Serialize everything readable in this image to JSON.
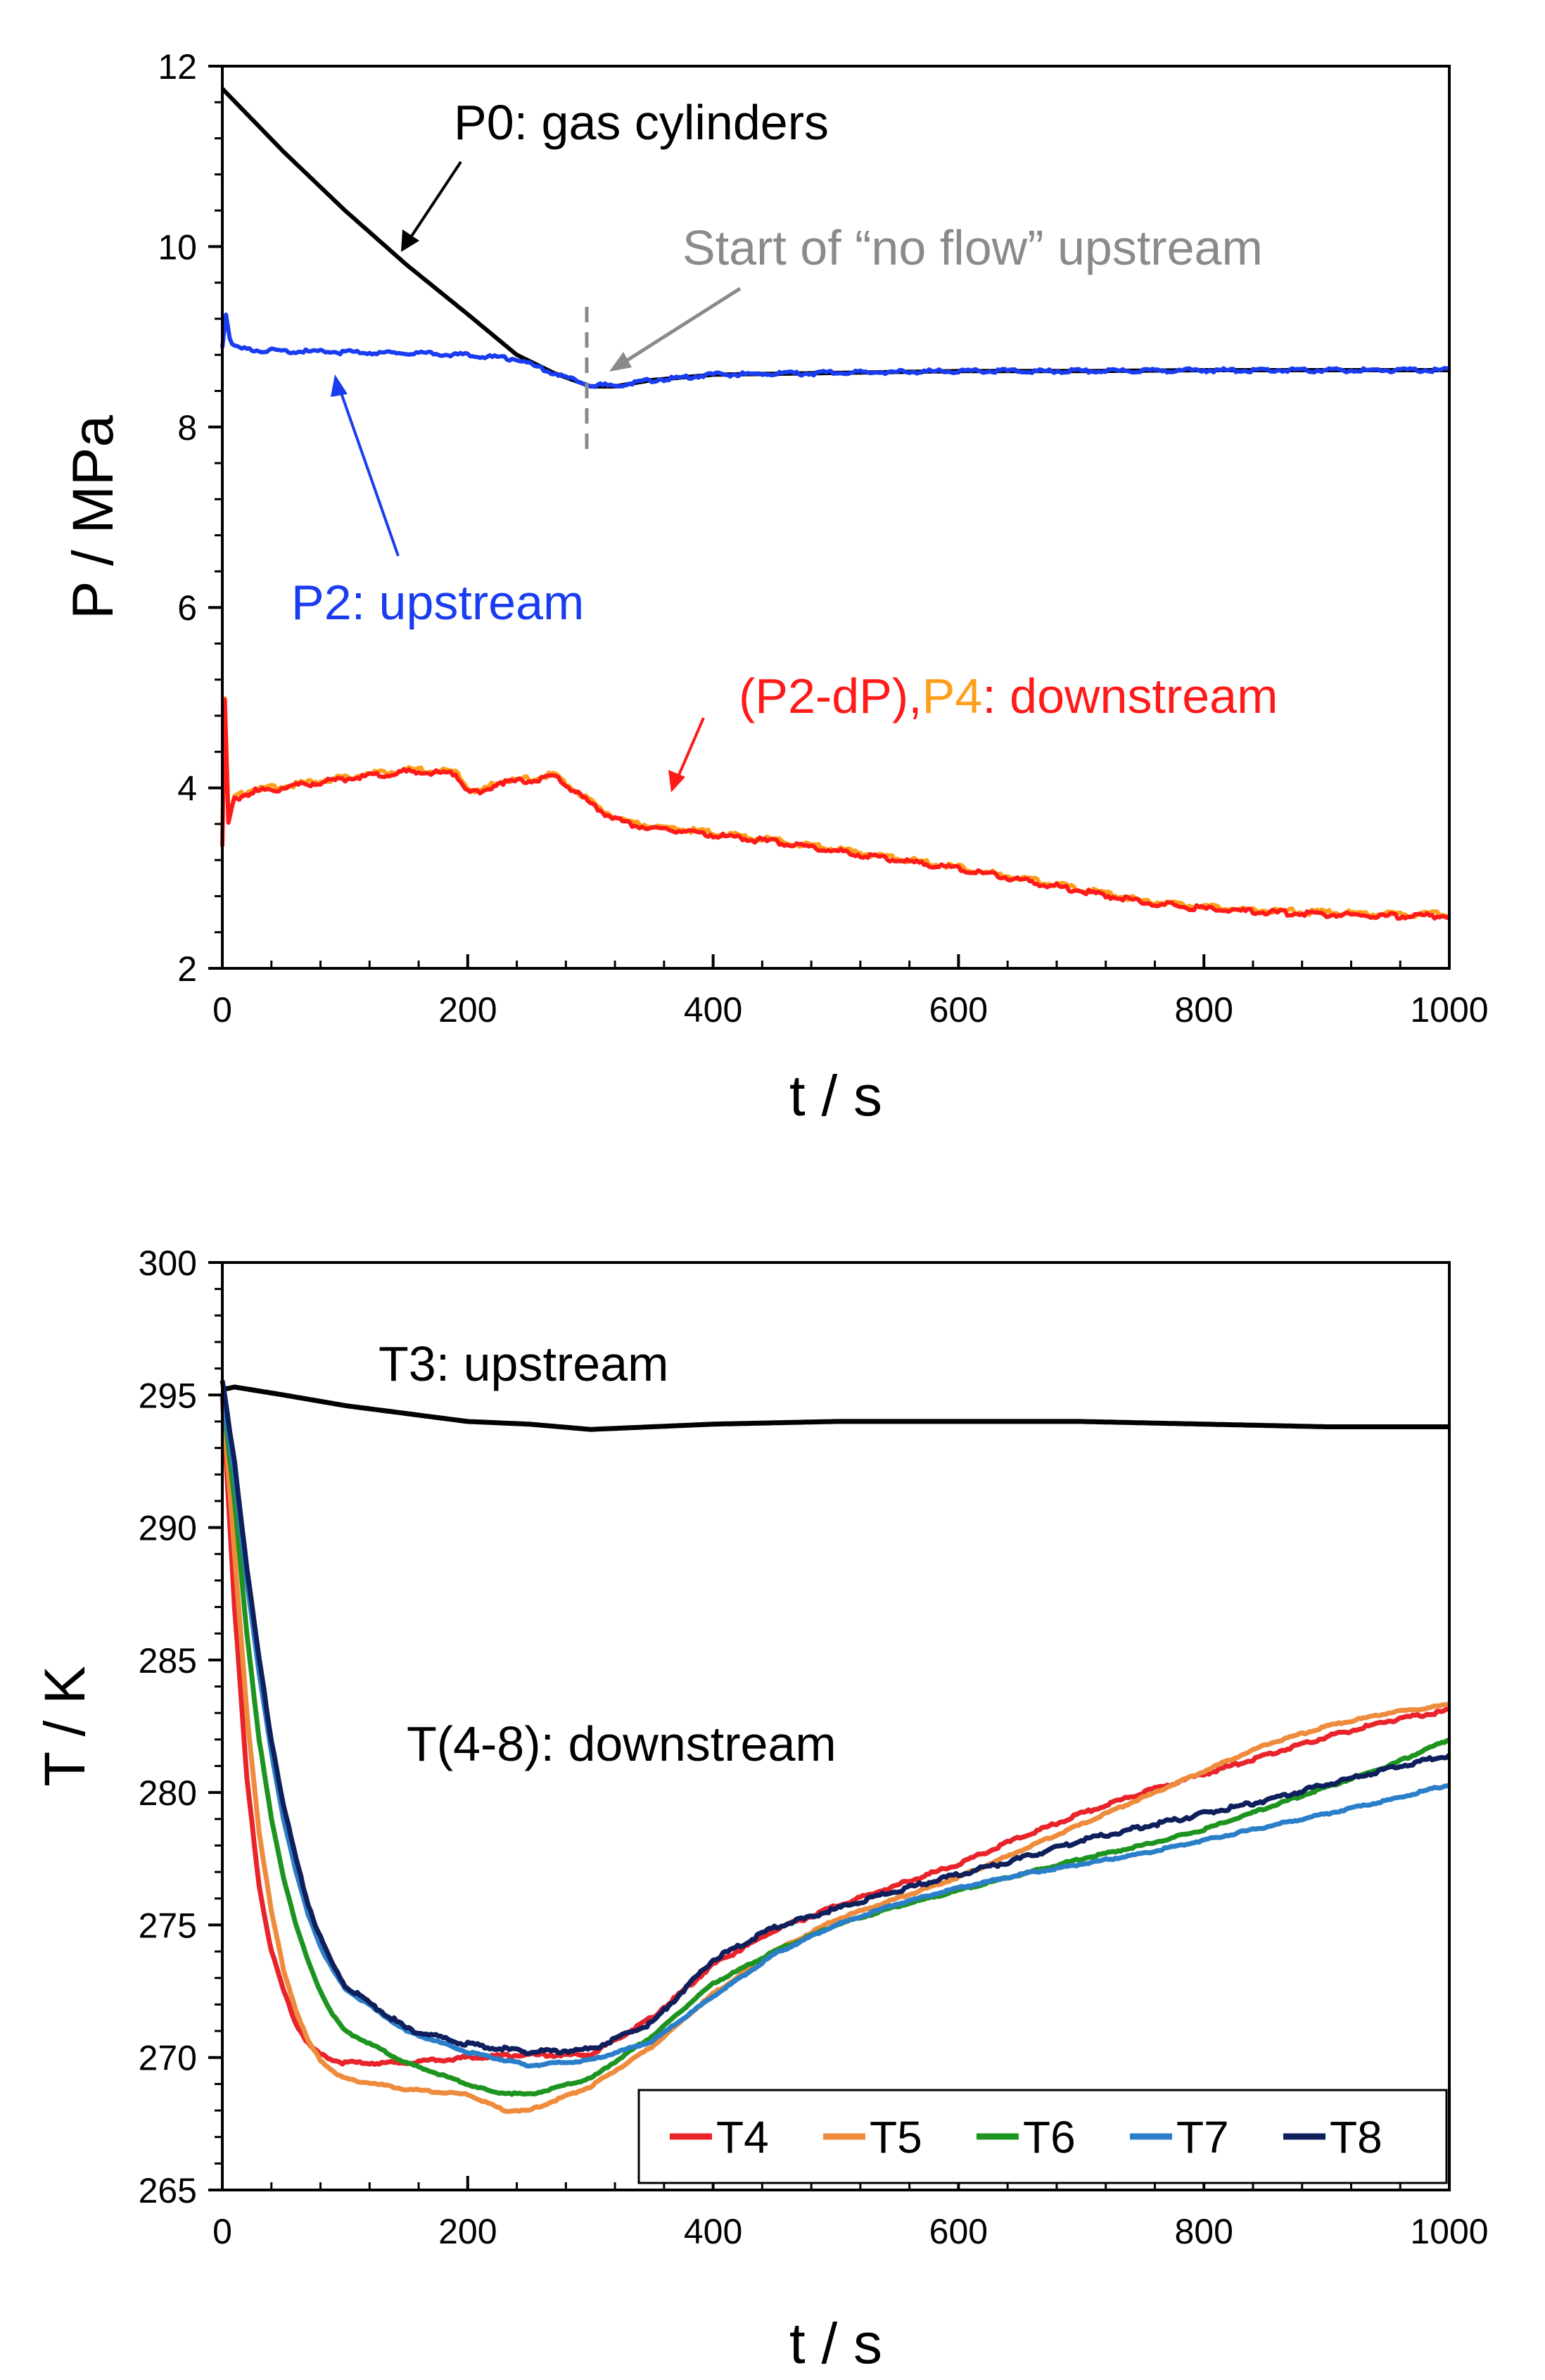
{
  "colors": {
    "black": "#000000",
    "blue": "#1a3cf0",
    "red": "#ff1a1a",
    "orange": "#ff9e1a",
    "grey": "#8a8a8a",
    "T4": "#e8232a",
    "T5": "#ef8b3c",
    "T6": "#1e9420",
    "T7": "#2b7fc9",
    "T8": "#0f1f5c"
  },
  "chart_data": [
    {
      "type": "line",
      "title": "",
      "xlabel": "t / s",
      "ylabel": "P / MPa",
      "xlim": [
        0,
        1000
      ],
      "ylim": [
        2,
        12
      ],
      "xticks": [
        "0",
        "200",
        "400",
        "600",
        "800",
        "1000"
      ],
      "yticks": [
        "2",
        "4",
        "6",
        "8",
        "10",
        "12"
      ],
      "series": [
        {
          "name": "P0",
          "color": "#000000",
          "x": [
            0,
            25,
            50,
            100,
            150,
            200,
            240,
            270,
            300,
            320,
            350,
            400,
            500,
            600,
            700,
            800,
            900,
            1000
          ],
          "y": [
            11.75,
            11.4,
            11.05,
            10.4,
            9.8,
            9.25,
            8.8,
            8.6,
            8.45,
            8.45,
            8.52,
            8.58,
            8.6,
            8.62,
            8.62,
            8.63,
            8.63,
            8.63
          ]
        },
        {
          "name": "P2",
          "color": "#1a3cf0",
          "x": [
            0,
            3,
            6,
            10,
            20,
            50,
            100,
            150,
            200,
            240,
            270,
            300,
            320,
            350,
            400,
            500,
            600,
            700,
            800,
            900,
            1000
          ],
          "y": [
            8.9,
            9.25,
            9.0,
            8.88,
            8.86,
            8.84,
            8.83,
            8.82,
            8.8,
            8.75,
            8.6,
            8.46,
            8.46,
            8.52,
            8.58,
            8.6,
            8.62,
            8.62,
            8.63,
            8.63,
            8.63
          ]
        },
        {
          "name": "P4",
          "color": "#ff9e1a",
          "x": [
            0,
            2,
            5,
            10,
            25,
            50,
            100,
            150,
            190,
            200,
            210,
            225,
            250,
            270,
            290,
            310,
            330,
            350,
            400,
            450,
            500,
            550,
            600,
            650,
            700,
            750,
            800,
            850,
            900,
            950,
            1000
          ],
          "y": [
            3.4,
            5.0,
            3.65,
            3.9,
            3.98,
            4.02,
            4.12,
            4.2,
            4.18,
            4.0,
            3.95,
            4.08,
            4.1,
            4.15,
            3.95,
            3.75,
            3.62,
            3.58,
            3.5,
            3.42,
            3.32,
            3.22,
            3.12,
            3.0,
            2.88,
            2.75,
            2.68,
            2.64,
            2.62,
            2.6,
            2.6
          ]
        },
        {
          "name": "(P2-dP)",
          "color": "#ff1a1a",
          "x": [
            0,
            2,
            5,
            10,
            25,
            50,
            100,
            150,
            190,
            200,
            210,
            225,
            250,
            270,
            290,
            310,
            330,
            350,
            400,
            450,
            500,
            550,
            600,
            650,
            700,
            750,
            800,
            850,
            900,
            950,
            1000
          ],
          "y": [
            3.35,
            4.95,
            3.6,
            3.88,
            3.96,
            4.0,
            4.1,
            4.18,
            4.16,
            3.98,
            3.93,
            4.06,
            4.08,
            4.13,
            3.93,
            3.73,
            3.6,
            3.56,
            3.48,
            3.4,
            3.3,
            3.2,
            3.1,
            2.98,
            2.86,
            2.73,
            2.66,
            2.62,
            2.6,
            2.58,
            2.58
          ]
        }
      ],
      "annotations": [
        {
          "id": "p0",
          "text": "P0: gas cylinders"
        },
        {
          "id": "no_flow",
          "text": "Start of “no flow” upstream"
        },
        {
          "id": "p2",
          "text": "P2: upstream"
        },
        {
          "id": "p2dp",
          "text": "(P2-dP),"
        },
        {
          "id": "p4",
          "text": "P4"
        },
        {
          "id": "downstream",
          "text": ": downstream"
        }
      ],
      "vline_x": 300
    },
    {
      "type": "line",
      "title": "",
      "xlabel": "t / s",
      "ylabel": "T / K",
      "xlim": [
        0,
        1000
      ],
      "ylim": [
        265,
        300
      ],
      "xticks": [
        "0",
        "200",
        "400",
        "600",
        "800",
        "1000"
      ],
      "yticks": [
        "265",
        "270",
        "275",
        "280",
        "285",
        "290",
        "295",
        "300"
      ],
      "legend": [
        "T4",
        "T5",
        "T6",
        "T7",
        "T8"
      ],
      "legend_position": "bottom-right",
      "series": [
        {
          "name": "T3",
          "color": "#000000",
          "x": [
            0,
            10,
            50,
            100,
            200,
            250,
            300,
            350,
            400,
            500,
            600,
            700,
            800,
            900,
            1000
          ],
          "y": [
            295.2,
            295.3,
            295.0,
            294.6,
            294.0,
            293.9,
            293.7,
            293.8,
            293.9,
            294.0,
            294.0,
            294.0,
            293.9,
            293.8,
            293.8
          ]
        },
        {
          "name": "T4",
          "color": "#e8232a",
          "x": [
            0,
            10,
            20,
            30,
            40,
            50,
            60,
            70,
            80,
            90,
            100,
            150,
            200,
            250,
            300,
            350,
            400,
            450,
            500,
            550,
            600,
            650,
            700,
            750,
            800,
            850,
            900,
            950,
            1000
          ],
          "y": [
            295,
            287,
            280.5,
            276.5,
            274,
            272.5,
            271.3,
            270.5,
            270.1,
            269.9,
            269.8,
            269.8,
            270.0,
            270.1,
            270.1,
            271.5,
            273.5,
            274.8,
            275.7,
            276.5,
            277.3,
            278.3,
            279.2,
            280.0,
            280.7,
            281.4,
            282.1,
            282.7,
            283.1
          ]
        },
        {
          "name": "T5",
          "color": "#ef8b3c",
          "x": [
            0,
            10,
            20,
            30,
            40,
            50,
            60,
            70,
            80,
            90,
            100,
            150,
            200,
            230,
            250,
            300,
            350,
            400,
            450,
            500,
            550,
            600,
            650,
            700,
            750,
            800,
            850,
            900,
            950,
            1000
          ],
          "y": [
            295,
            289,
            283,
            278.5,
            275.5,
            273.3,
            271.8,
            270.6,
            269.9,
            269.5,
            269.2,
            268.8,
            268.6,
            268.0,
            268.0,
            268.9,
            270.4,
            272.4,
            274.0,
            275.2,
            276.0,
            276.8,
            277.8,
            278.8,
            279.8,
            280.8,
            281.8,
            282.5,
            283.0,
            283.3
          ]
        },
        {
          "name": "T6",
          "color": "#1e9420",
          "x": [
            0,
            10,
            20,
            30,
            40,
            50,
            60,
            70,
            80,
            90,
            100,
            150,
            200,
            220,
            250,
            300,
            350,
            400,
            450,
            500,
            550,
            600,
            650,
            700,
            750,
            800,
            850,
            900,
            950,
            1000
          ],
          "y": [
            295,
            291,
            286,
            282,
            279,
            276.8,
            275,
            273.6,
            272.5,
            271.6,
            271.0,
            269.8,
            269.0,
            268.7,
            268.6,
            269.2,
            270.8,
            272.8,
            274.0,
            275.0,
            275.7,
            276.3,
            276.9,
            277.5,
            278.0,
            278.6,
            279.4,
            280.2,
            281.0,
            282.0
          ]
        },
        {
          "name": "T7",
          "color": "#2b7fc9",
          "x": [
            0,
            10,
            20,
            30,
            40,
            50,
            60,
            70,
            80,
            90,
            100,
            150,
            200,
            250,
            300,
            350,
            400,
            450,
            500,
            550,
            600,
            650,
            700,
            750,
            800,
            850,
            900,
            950,
            1000
          ],
          "y": [
            295,
            292,
            288,
            284.5,
            281.5,
            279,
            277,
            275.4,
            274.2,
            273.3,
            272.6,
            271.0,
            270.2,
            269.7,
            269.9,
            270.6,
            272.3,
            273.9,
            275.0,
            275.8,
            276.4,
            276.9,
            277.3,
            277.7,
            278.2,
            278.7,
            279.2,
            279.7,
            280.3
          ]
        },
        {
          "name": "T8",
          "color": "#0f1f5c",
          "x": [
            0,
            10,
            20,
            30,
            40,
            50,
            60,
            70,
            80,
            90,
            100,
            150,
            200,
            250,
            300,
            350,
            400,
            450,
            500,
            550,
            600,
            650,
            700,
            750,
            800,
            850,
            900,
            950,
            1000
          ],
          "y": [
            295.5,
            292.5,
            288.5,
            285,
            282,
            279.5,
            277.5,
            275.8,
            274.5,
            273.5,
            272.7,
            271.1,
            270.5,
            270.2,
            270.3,
            271.3,
            273.7,
            274.9,
            275.6,
            276.3,
            276.9,
            277.5,
            278.2,
            278.7,
            279.2,
            279.7,
            280.3,
            280.9,
            281.4
          ]
        }
      ],
      "annotations": [
        {
          "id": "t3",
          "text": "T3: upstream"
        },
        {
          "id": "t48",
          "text": "T(4-8): downstream"
        }
      ]
    }
  ]
}
